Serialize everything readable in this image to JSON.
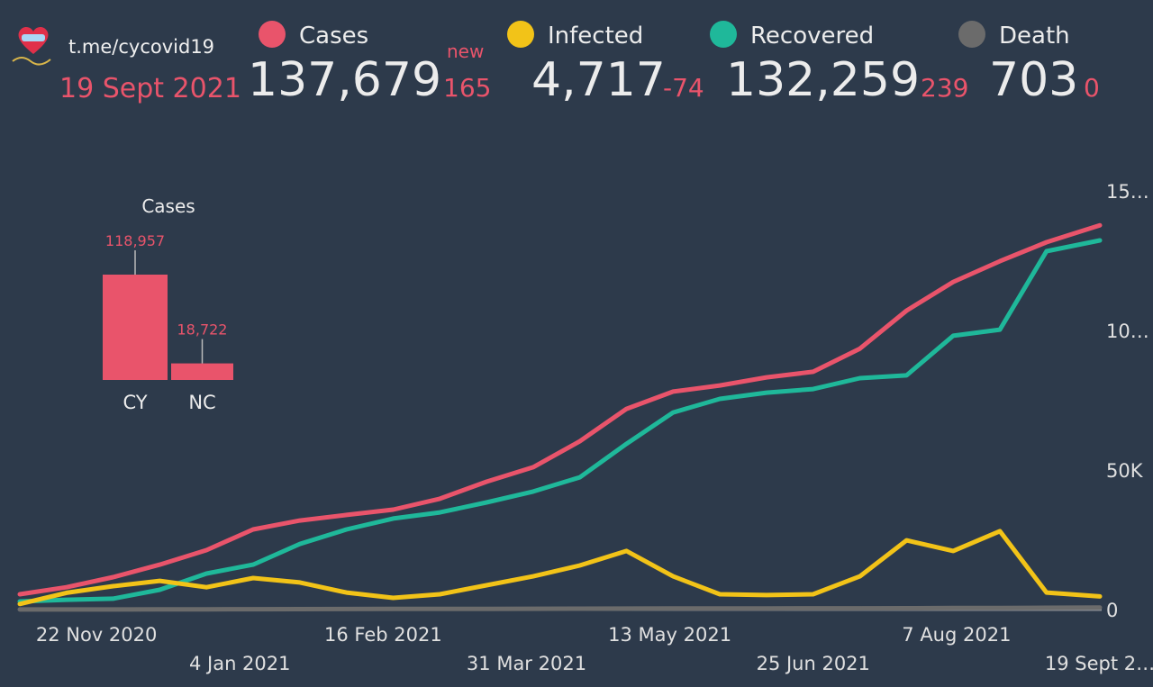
{
  "header": {
    "channel": "t.me/cycovid19",
    "date": "19 Sept 2021",
    "new_label": "new"
  },
  "stats": [
    {
      "total": "137,679",
      "change": "165"
    },
    {
      "total": "4,717",
      "change": "-74"
    },
    {
      "total": "132,259",
      "change": "239"
    },
    {
      "total": "703",
      "change": "0"
    }
  ],
  "chart_data": [
    {
      "type": "bar",
      "title": "Cases",
      "categories": [
        "CY",
        "NC"
      ],
      "values": [
        118957,
        18722
      ],
      "value_labels": [
        "118,957",
        "18,722"
      ],
      "color": "#e9546b"
    },
    {
      "type": "line",
      "x": [
        "2020-10-30",
        "2020-11-13",
        "2020-11-27",
        "2020-12-11",
        "2020-12-25",
        "2021-01-08",
        "2021-01-22",
        "2021-02-05",
        "2021-02-19",
        "2021-03-05",
        "2021-03-19",
        "2021-04-02",
        "2021-04-16",
        "2021-04-30",
        "2021-05-14",
        "2021-05-28",
        "2021-06-11",
        "2021-06-25",
        "2021-07-09",
        "2021-07-23",
        "2021-08-06",
        "2021-08-20",
        "2021-09-03",
        "2021-09-19"
      ],
      "xlim": [
        "2020-10-30",
        "2021-09-19"
      ],
      "xticks": [
        {
          "value": "2020-11-22",
          "label": "22 Nov 2020"
        },
        {
          "value": "2021-01-04",
          "label": "4 Jan 2021"
        },
        {
          "value": "2021-02-16",
          "label": "16 Feb 2021"
        },
        {
          "value": "2021-03-31",
          "label": "31 Mar 2021"
        },
        {
          "value": "2021-05-13",
          "label": "13 May 2021"
        },
        {
          "value": "2021-06-25",
          "label": "25 Jun 2021"
        },
        {
          "value": "2021-08-07",
          "label": "7 Aug 2021"
        },
        {
          "value": "2021-09-19",
          "label": "19 Sept 2…"
        }
      ],
      "ylim": [
        0,
        150000
      ],
      "yticks": [
        0,
        {
          "value": 50000,
          "label": "50K"
        },
        {
          "value": 100000,
          "label": "10…"
        },
        {
          "value": 150000,
          "label": "15…"
        }
      ],
      "series": [
        {
          "name": "Cases",
          "color": "#e9546b",
          "values": [
            5500,
            8000,
            11600,
            16100,
            21300,
            28700,
            31900,
            33900,
            35800,
            39700,
            45800,
            51000,
            60300,
            71900,
            78100,
            80300,
            83200,
            85200,
            93500,
            107100,
            117400,
            124800,
            131600,
            137679
          ]
        },
        {
          "name": "Infected",
          "color": "#f2c318",
          "values": [
            2000,
            6000,
            8400,
            10300,
            8000,
            11300,
            9700,
            6100,
            4200,
            5500,
            8700,
            11900,
            15800,
            21000,
            11900,
            5500,
            5200,
            5500,
            11900,
            24800,
            21000,
            28100,
            6100,
            4717
          ]
        },
        {
          "name": "Recovered",
          "color": "#1fb89a",
          "values": [
            2900,
            3500,
            3900,
            7100,
            12900,
            16100,
            23500,
            28700,
            32600,
            34800,
            38400,
            42300,
            47400,
            59400,
            70600,
            75500,
            77700,
            79000,
            82900,
            83900,
            98100,
            100300,
            128400,
            132259
          ]
        },
        {
          "name": "Death",
          "color": "#6b6b6b",
          "values": [
            25,
            30,
            45,
            70,
            100,
            130,
            160,
            190,
            210,
            230,
            250,
            280,
            310,
            350,
            400,
            420,
            430,
            440,
            450,
            480,
            540,
            580,
            640,
            703
          ]
        }
      ]
    }
  ]
}
